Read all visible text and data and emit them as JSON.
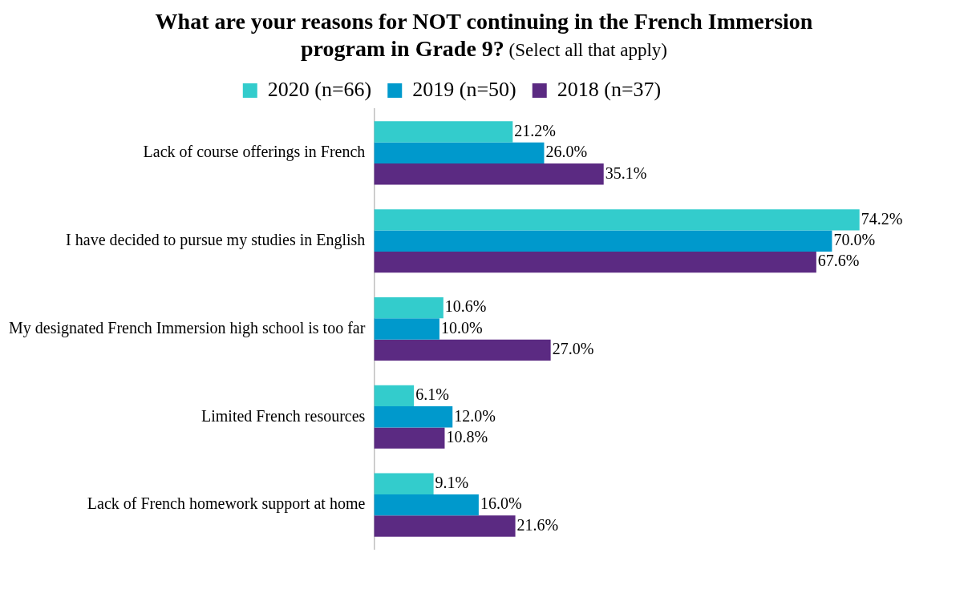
{
  "chart_data": {
    "type": "bar",
    "orientation": "horizontal",
    "title": "What are your reasons for NOT continuing in the French Immersion program in Grade 9?",
    "subtitle": "(Select all that apply)",
    "categories": [
      "Lack of course offerings in French",
      "I have decided to pursue my studies in English",
      "My designated French Immersion high school is too far",
      "Limited French resources",
      "Lack of French homework support at home"
    ],
    "series": [
      {
        "name": "2020 (n=66)",
        "color": "#33cccc",
        "values": [
          21.2,
          74.2,
          10.6,
          6.1,
          9.1
        ],
        "value_labels": [
          "21.2%",
          "74.2%",
          "10.6%",
          "6.1%",
          "9.1%"
        ]
      },
      {
        "name": "2019 (n=50)",
        "color": "#0099cc",
        "values": [
          26.0,
          70.0,
          10.0,
          12.0,
          16.0
        ],
        "value_labels": [
          "26.0%",
          "70.0%",
          "10.0%",
          "12.0%",
          "16.0%"
        ]
      },
      {
        "name": "2018 (n=37)",
        "color": "#5b2a82",
        "values": [
          35.1,
          67.6,
          27.0,
          10.8,
          21.6
        ],
        "value_labels": [
          "35.1%",
          "67.6%",
          "27.0%",
          "10.8%",
          "21.6%"
        ]
      }
    ],
    "legend": "top",
    "grid": false
  }
}
